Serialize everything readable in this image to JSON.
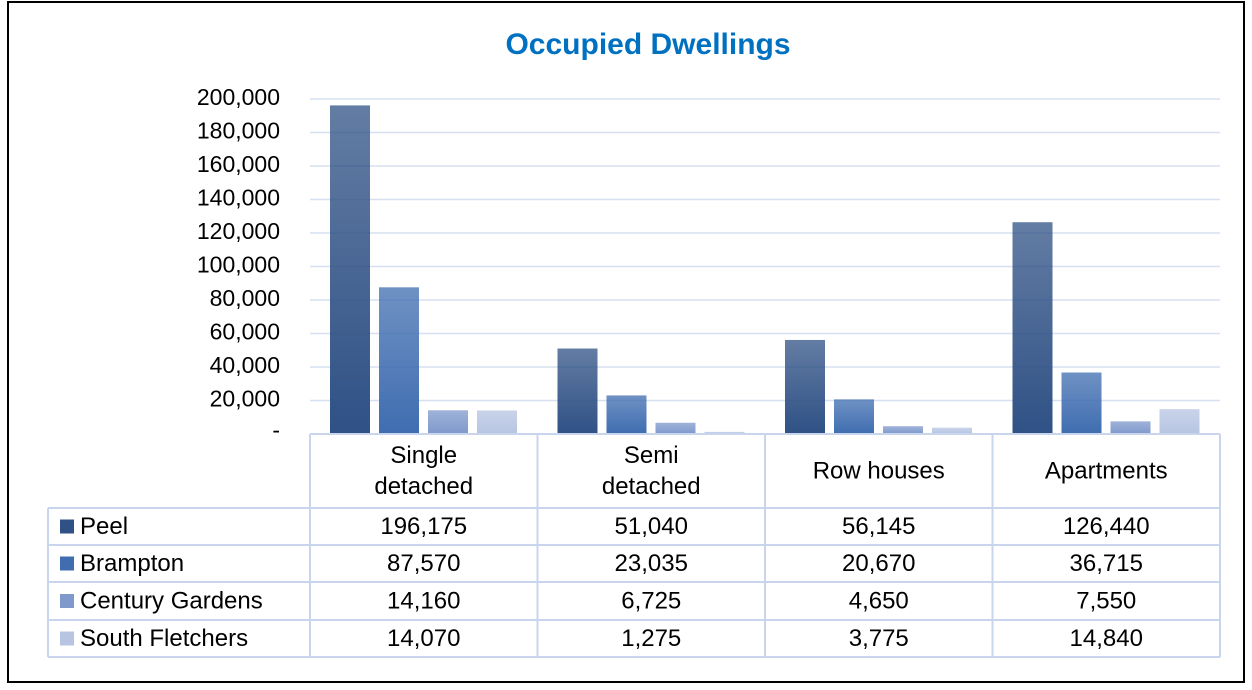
{
  "chart_data": {
    "type": "bar",
    "title": "Occupied Dwellings",
    "categories": [
      "Single detached",
      "Semi detached",
      "Row houses",
      "Apartments"
    ],
    "series": [
      {
        "name": "Peel",
        "color": "#2f5185",
        "values": [
          196175,
          51040,
          56145,
          126440
        ],
        "value_labels": [
          "196,175",
          "51,040",
          "56,145",
          "126,440"
        ]
      },
      {
        "name": "Brampton",
        "color": "#3f6db0",
        "values": [
          87570,
          23035,
          20670,
          36715
        ],
        "value_labels": [
          "87,570",
          "23,035",
          "20,670",
          "36,715"
        ]
      },
      {
        "name": "Century Gardens",
        "color": "#7f99cc",
        "values": [
          14160,
          6725,
          4650,
          7550
        ],
        "value_labels": [
          "14,160",
          "6,725",
          "4,650",
          "7,550"
        ]
      },
      {
        "name": "South Fletchers",
        "color": "#b7c5e2",
        "values": [
          14070,
          1275,
          3775,
          14840
        ],
        "value_labels": [
          "14,070",
          "1,275",
          "3,775",
          "14,840"
        ]
      }
    ],
    "ylim": [
      0,
      200000
    ],
    "yticks": [
      {
        "value": 0,
        "label": "-"
      },
      {
        "value": 20000,
        "label": "20,000"
      },
      {
        "value": 40000,
        "label": "40,000"
      },
      {
        "value": 60000,
        "label": "60,000"
      },
      {
        "value": 80000,
        "label": "80,000"
      },
      {
        "value": 100000,
        "label": "100,000"
      },
      {
        "value": 120000,
        "label": "120,000"
      },
      {
        "value": 140000,
        "label": "140,000"
      },
      {
        "value": 160000,
        "label": "160,000"
      },
      {
        "value": 180000,
        "label": "180,000"
      },
      {
        "value": 200000,
        "label": "200,000"
      }
    ],
    "grid": true,
    "data_table": true
  }
}
